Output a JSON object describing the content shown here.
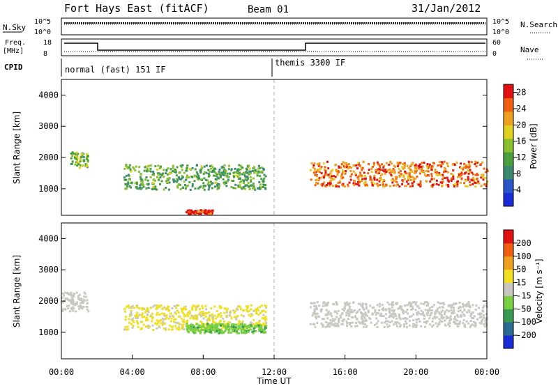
{
  "header": {
    "station": "Fort Hays East (fitACF)",
    "beam": "Beam 01",
    "date": "31/Jan/2012"
  },
  "top_panels": {
    "nsky_label": "N.Sky",
    "nsearch_label": "N.Search",
    "noise_tick_hi": "10^5",
    "noise_tick_lo": "10^0",
    "freq_label": "Freq.",
    "freq_unit": "[MHz]",
    "freq_tick_hi": "18",
    "freq_tick_lo": "8",
    "nave_label": "Nave",
    "nave_tick_hi": "60",
    "nave_tick_lo": "0",
    "cpid_label": "CPID",
    "cpid_mode_1": "normal (fast) 151 IF",
    "cpid_mode_2": "themis 3300 IF"
  },
  "colors": {
    "power": [
      "#1a2bd8",
      "#2a55c8",
      "#3a8a70",
      "#4aa040",
      "#8ac030",
      "#e0d020",
      "#f0a020",
      "#f06010",
      "#e01010"
    ],
    "velocity": [
      "#1a2bd8",
      "#2a6a90",
      "#3a9a50",
      "#7ad040",
      "#c8c8c0",
      "#f0e020",
      "#f0a020",
      "#f06010",
      "#e01010"
    ]
  },
  "chart_data": [
    {
      "type": "heatmap",
      "title": "",
      "xlabel": "",
      "ylabel": "Slant Range [km]",
      "xlim": [
        "00:00",
        "24:00"
      ],
      "ylim": [
        150,
        4500
      ],
      "yticks": [
        "1000",
        "2000",
        "3000",
        "4000"
      ],
      "colorbar": {
        "label": "Power [dB]",
        "ticks": [
          "4",
          "8",
          "12",
          "16",
          "20",
          "24",
          "28"
        ],
        "range": [
          0,
          30
        ]
      },
      "features": [
        {
          "x": [
            "00:30",
            "01:30"
          ],
          "y": [
            1700,
            2200
          ],
          "value": 14
        },
        {
          "x": [
            "03:30",
            "11:30"
          ],
          "y": [
            1000,
            1800
          ],
          "value": 12
        },
        {
          "x": [
            "07:00",
            "08:30"
          ],
          "y": [
            200,
            350
          ],
          "value": 28
        },
        {
          "x": [
            "14:00",
            "24:00"
          ],
          "y": [
            1100,
            1900
          ],
          "value": 24
        }
      ]
    },
    {
      "type": "heatmap",
      "title": "",
      "xlabel": "Time UT",
      "ylabel": "Slant Range [km]",
      "xlim": [
        "00:00",
        "24:00"
      ],
      "ylim": [
        150,
        4500
      ],
      "yticks": [
        "1000",
        "2000",
        "3000",
        "4000"
      ],
      "xticks": [
        "00:00",
        "04:00",
        "08:00",
        "12:00",
        "16:00",
        "20:00",
        "00:00"
      ],
      "colorbar": {
        "label": "Velocity [m s⁻¹]",
        "ticks": [
          "200",
          "100",
          "50",
          "15",
          "-15",
          "-50",
          "-100",
          "-200"
        ],
        "range": [
          -250,
          250
        ]
      },
      "features": [
        {
          "x": [
            "00:00",
            "01:30"
          ],
          "y": [
            1700,
            2300
          ],
          "value": 0
        },
        {
          "x": [
            "03:30",
            "11:30"
          ],
          "y": [
            1100,
            1900
          ],
          "value": 30
        },
        {
          "x": [
            "07:00",
            "11:30"
          ],
          "y": [
            1000,
            1300
          ],
          "value": -80
        },
        {
          "x": [
            "14:00",
            "24:00"
          ],
          "y": [
            1200,
            2000
          ],
          "value": 0
        }
      ]
    }
  ]
}
